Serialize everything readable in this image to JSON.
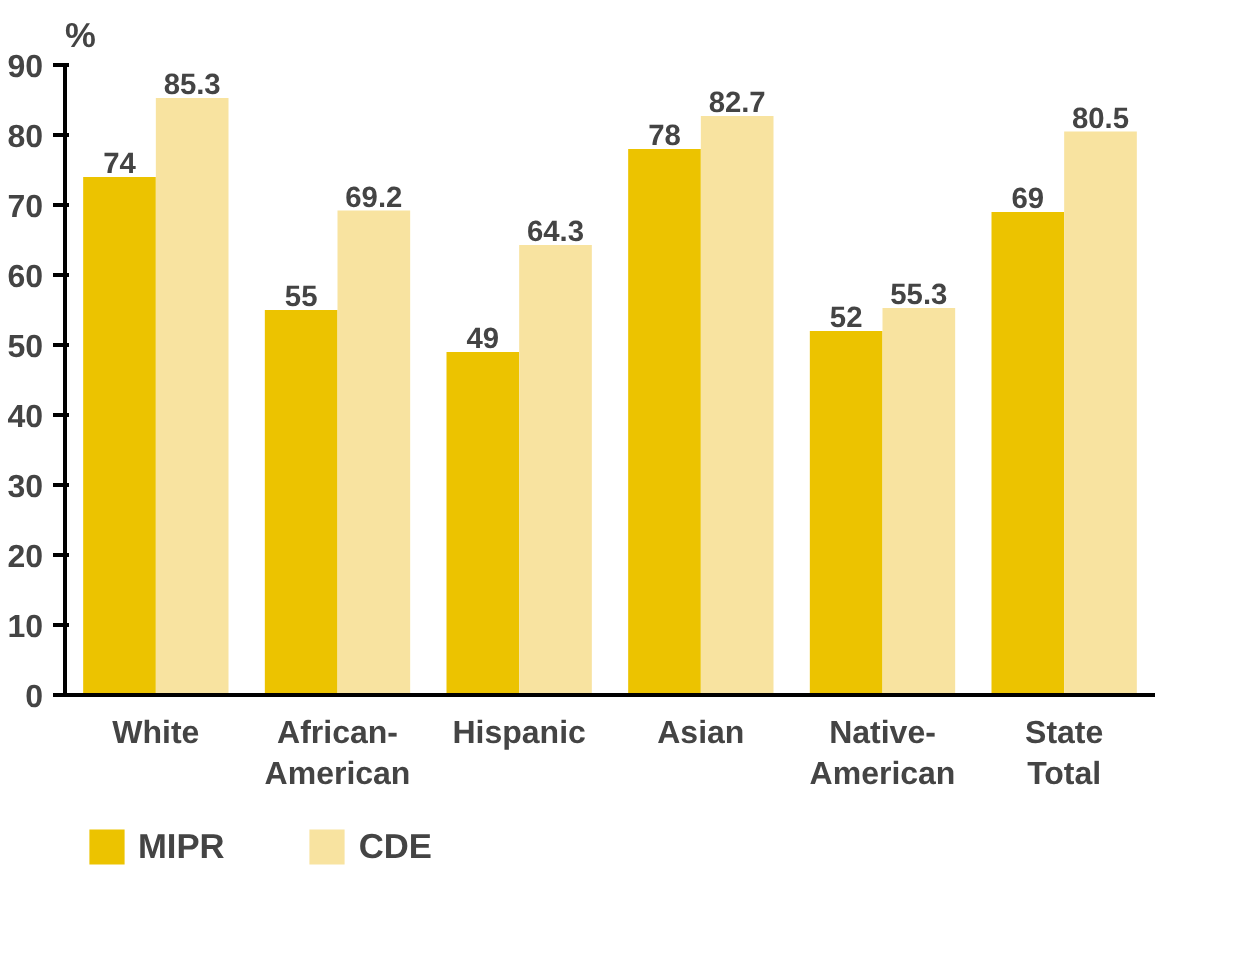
{
  "chart_data": {
    "type": "bar",
    "ylabel": "%",
    "categories": [
      "White",
      "African-American",
      "Hispanic",
      "Asian",
      "Native-American",
      "State Total"
    ],
    "series": [
      {
        "name": "MIPR",
        "color": "#ecc300",
        "values": [
          74,
          55,
          49,
          78,
          52,
          69
        ]
      },
      {
        "name": "CDE",
        "color": "#f8e3a0",
        "values": [
          85.3,
          69.2,
          64.3,
          82.7,
          55.3,
          80.5
        ]
      }
    ],
    "ylim": [
      0,
      90
    ],
    "yticks": [
      0,
      10,
      20,
      30,
      40,
      50,
      60,
      70,
      80,
      90
    ],
    "data_labels": true,
    "grid": false,
    "legend": "bottom left"
  }
}
